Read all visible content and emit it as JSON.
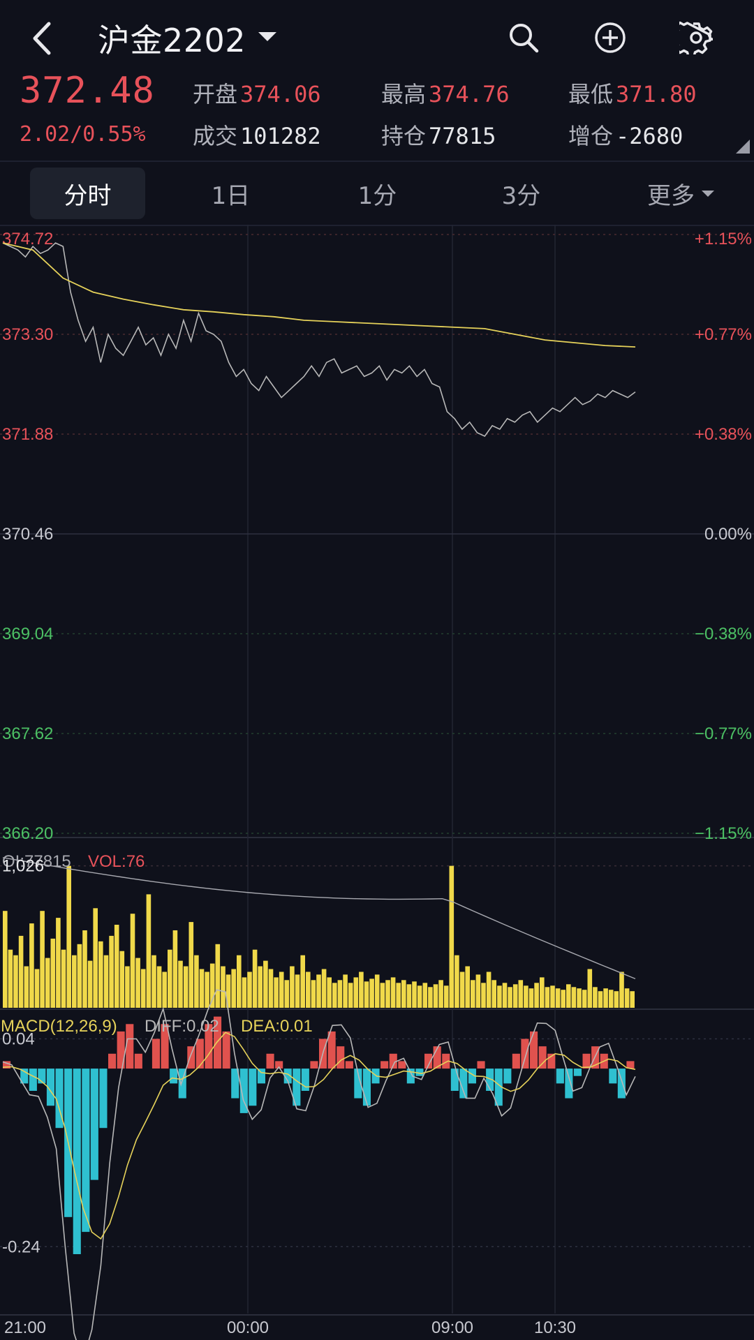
{
  "header": {
    "title": "沪金2202",
    "icons": [
      "back-icon",
      "search-icon",
      "add-icon",
      "gear-icon"
    ]
  },
  "quote": {
    "price": "372.48",
    "change": "2.02/0.55%",
    "open_label": "开盘",
    "open_value": "374.06",
    "high_label": "最高",
    "high_value": "374.76",
    "low_label": "最低",
    "low_value": "371.80",
    "volume_label": "成交",
    "volume_value": "101282",
    "oi_label": "持仓",
    "oi_value": "77815",
    "oi_change_label": "增仓",
    "oi_change_value": "-2680"
  },
  "tabs": [
    {
      "label": "分时",
      "active": true
    },
    {
      "label": "1日",
      "active": false
    },
    {
      "label": "1分",
      "active": false
    },
    {
      "label": "3分",
      "active": false
    },
    {
      "label": "更多",
      "active": false
    }
  ],
  "colors": {
    "up": "#e8525a",
    "down": "#4cc064",
    "price_line": "#b8b8b8",
    "avg_line": "#e6d25a",
    "volume_bar": "#f0d94a",
    "macd_pos": "#e0524e",
    "macd_neg": "#2fc0d0",
    "background": "#0f111b"
  },
  "chart_data": [
    {
      "type": "line",
      "price_axis": [
        "374.72",
        "373.30",
        "371.88",
        "370.46",
        "369.04",
        "367.62",
        "366.20"
      ],
      "pct_axis": [
        "+1.15%",
        "+0.77%",
        "+0.38%",
        "0.00%",
        "−0.38%",
        "−0.77%",
        "−1.15%"
      ],
      "ylim": [
        366.2,
        374.72
      ],
      "x_ticks": [
        "21:00",
        "00:00",
        "09:00",
        "10:30"
      ],
      "series": [
        {
          "values": [
            374.6,
            374.55,
            374.5,
            374.4,
            374.55,
            374.45,
            374.5,
            374.6,
            374.55,
            373.9,
            373.5,
            373.2,
            373.4,
            372.9,
            373.3,
            373.1,
            373.0,
            373.2,
            373.4,
            373.15,
            373.25,
            373.0,
            373.3,
            373.1,
            373.5,
            373.2,
            373.6,
            373.35,
            373.3,
            373.2,
            372.9,
            372.7,
            372.8,
            372.6,
            372.5,
            372.7,
            372.55,
            372.4,
            372.5,
            372.6,
            372.7,
            372.85,
            372.7,
            372.9,
            372.95,
            372.75,
            372.8,
            372.85,
            372.7,
            372.75,
            372.85,
            372.65,
            372.8,
            372.75,
            372.85,
            372.7,
            372.8,
            372.6,
            372.55,
            372.2,
            372.1,
            371.95,
            372.05,
            371.9,
            371.85,
            372.0,
            371.95,
            372.1,
            372.05,
            372.15,
            372.2,
            372.05,
            372.15,
            372.25,
            372.2,
            372.3,
            372.4,
            372.3,
            372.35,
            372.45,
            372.4,
            372.5,
            372.45,
            372.4,
            372.48
          ]
        },
        {
          "values": [
            374.6,
            374.5,
            374.1,
            373.9,
            373.8,
            373.72,
            373.65,
            373.62,
            373.58,
            373.55,
            373.5,
            373.48,
            373.46,
            373.44,
            373.42,
            373.4,
            373.38,
            373.3,
            373.22,
            373.18,
            373.14,
            373.12
          ]
        }
      ]
    },
    {
      "type": "bar",
      "oi_label": "OI:77815",
      "vol_label": "VOL:76",
      "ref_value": "1,026",
      "volumes": [
        700,
        420,
        380,
        520,
        300,
        610,
        280,
        700,
        360,
        500,
        650,
        420,
        1026,
        380,
        460,
        560,
        340,
        720,
        480,
        380,
        520,
        600,
        410,
        300,
        680,
        360,
        280,
        820,
        380,
        300,
        260,
        420,
        560,
        340,
        300,
        620,
        380,
        280,
        260,
        320,
        460,
        300,
        240,
        280,
        380,
        220,
        260,
        420,
        300,
        340,
        280,
        220,
        260,
        200,
        300,
        240,
        380,
        260,
        200,
        240,
        280,
        220,
        180,
        200,
        240,
        180,
        220,
        260,
        190,
        210,
        240,
        180,
        200,
        220,
        180,
        200,
        170,
        190,
        160,
        180,
        150,
        170,
        200,
        160,
        1026,
        380,
        260,
        300,
        200,
        240,
        180,
        260,
        200,
        160,
        180,
        150,
        170,
        200,
        160,
        140,
        180,
        220,
        150,
        160,
        140,
        130,
        170,
        150,
        140,
        130,
        280,
        150,
        120,
        140,
        130,
        120,
        260,
        140,
        120
      ]
    },
    {
      "type": "bar",
      "label": "MACD(12,26,9)",
      "diff_label": "DIFF:0.02",
      "dea_label": "DEA:0.01",
      "y_ticks": [
        "0.04",
        "-0.24"
      ],
      "ylim": [
        -0.33,
        0.08
      ],
      "macd": [
        0.01,
        0.0,
        -0.02,
        -0.03,
        -0.02,
        -0.05,
        -0.08,
        -0.2,
        -0.25,
        -0.22,
        -0.15,
        -0.08,
        0.02,
        0.05,
        0.06,
        0.02,
        0.0,
        0.04,
        0.06,
        -0.02,
        -0.04,
        0.03,
        0.04,
        0.06,
        0.07,
        0.05,
        -0.04,
        -0.06,
        -0.05,
        -0.02,
        0.02,
        0.01,
        -0.02,
        -0.05,
        -0.03,
        0.01,
        0.04,
        0.05,
        0.03,
        0.01,
        -0.04,
        -0.05,
        -0.02,
        0.01,
        0.02,
        0.01,
        -0.02,
        -0.01,
        0.02,
        0.03,
        0.02,
        -0.03,
        -0.04,
        -0.02,
        0.01,
        -0.03,
        -0.05,
        -0.02,
        0.02,
        0.04,
        0.05,
        0.03,
        0.02,
        -0.02,
        -0.04,
        -0.01,
        0.02,
        0.03,
        0.02,
        -0.02,
        -0.04,
        0.01
      ]
    }
  ]
}
